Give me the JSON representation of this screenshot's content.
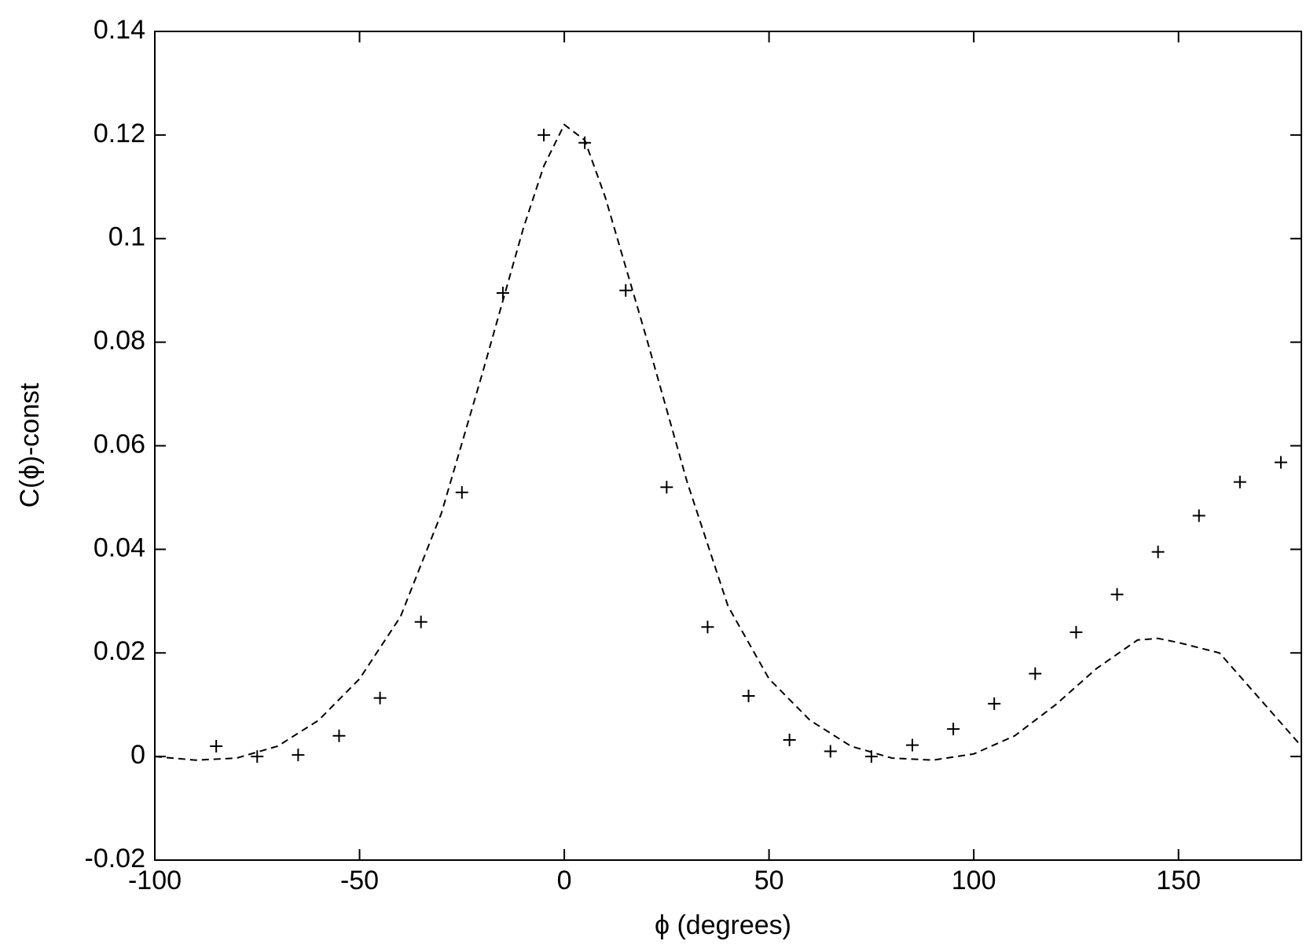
{
  "chart_data": {
    "type": "scatter",
    "xlabel": "ϕ (degrees)",
    "ylabel": "C(ϕ)-const",
    "xlim": [
      -100,
      180
    ],
    "xticks": [
      -100,
      -50,
      0,
      50,
      100,
      150
    ],
    "ylim": [
      -0.02,
      0.14
    ],
    "yticks": [
      -0.02,
      0,
      0.02,
      0.04,
      0.06,
      0.08,
      0.1,
      0.12,
      0.14
    ],
    "series": [
      {
        "type": "scatter",
        "color": "#000000",
        "x": [
          -85,
          -75,
          -65,
          -55,
          -45,
          -35,
          -25,
          -15,
          -5,
          5,
          15,
          25,
          35,
          45,
          55,
          65,
          75,
          85,
          95,
          105,
          115,
          125,
          135,
          145,
          155,
          165,
          175
        ],
        "values": [
          0.002,
          0.0,
          0.0003,
          0.004,
          0.0113,
          0.026,
          0.051,
          0.0895,
          0.12,
          0.1185,
          0.09,
          0.052,
          0.025,
          0.0117,
          0.0032,
          0.001,
          0.0,
          0.0022,
          0.0053,
          0.0102,
          0.016,
          0.024,
          0.0313,
          0.0395,
          0.0465,
          0.053,
          0.0568
        ]
      },
      {
        "type": "line",
        "color": "#000000",
        "dashed": true,
        "x": [
          -100,
          -90,
          -80,
          -70,
          -60,
          -50,
          -40,
          -30,
          -20,
          -10,
          -5,
          0,
          5,
          10,
          20,
          30,
          40,
          50,
          60,
          70,
          80,
          90,
          100,
          110,
          120,
          130,
          140,
          145,
          150,
          160,
          170,
          180
        ],
        "values": [
          0.0,
          -0.0007,
          -0.0003,
          0.002,
          0.007,
          0.015,
          0.027,
          0.047,
          0.074,
          0.102,
          0.114,
          0.122,
          0.119,
          0.108,
          0.081,
          0.053,
          0.029,
          0.015,
          0.007,
          0.002,
          -0.0003,
          -0.0007,
          0.0005,
          0.004,
          0.01,
          0.017,
          0.0225,
          0.0228,
          0.022,
          0.02,
          0.011,
          0.002
        ]
      }
    ]
  }
}
